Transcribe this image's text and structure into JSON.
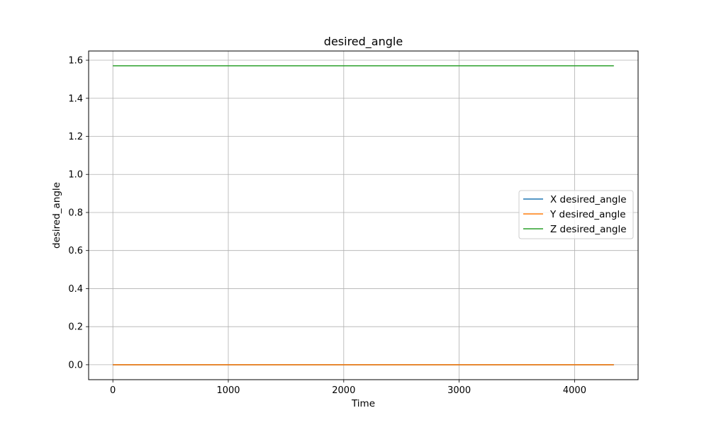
{
  "chart_data": {
    "type": "line",
    "title": "desired_angle",
    "xlabel": "Time",
    "ylabel": "desired_angle",
    "xlim": [
      -210,
      4550
    ],
    "ylim": [
      -0.0785,
      1.6485
    ],
    "xticks": [
      0,
      1000,
      2000,
      3000,
      4000
    ],
    "yticks": [
      0.0,
      0.2,
      0.4,
      0.6,
      0.8,
      1.0,
      1.2,
      1.4,
      1.6
    ],
    "xtick_labels": [
      "0",
      "1000",
      "2000",
      "3000",
      "4000"
    ],
    "ytick_labels": [
      "0.0",
      "0.2",
      "0.4",
      "0.6",
      "0.8",
      "1.0",
      "1.2",
      "1.4",
      "1.6"
    ],
    "grid": true,
    "legend_position": "center-right",
    "x": [
      0,
      4340
    ],
    "series": [
      {
        "name": "X desired_angle",
        "color": "#1f77b4",
        "values": [
          0.0,
          0.0
        ]
      },
      {
        "name": "Y desired_angle",
        "color": "#ff7f0e",
        "values": [
          0.0,
          0.0
        ]
      },
      {
        "name": "Z desired_angle",
        "color": "#2ca02c",
        "values": [
          1.5708,
          1.5708
        ]
      }
    ]
  }
}
